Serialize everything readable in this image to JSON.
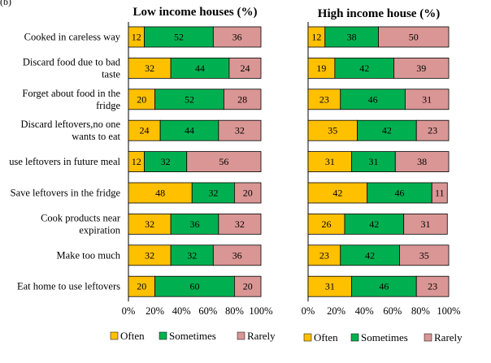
{
  "figure_label": "(b)",
  "chart_data": [
    {
      "type": "bar",
      "orientation": "horizontal",
      "stacked": true,
      "title": "Low income houses (%)",
      "categories": [
        "Cooked in careless way",
        "Discard food due to bad taste",
        "Forget about food in the fridge",
        "Discard leftovers,no one wants to eat",
        "use leftovers in future meal",
        "Save leftovers in the fridge",
        "Cook products near expiration",
        "Make too much",
        "Eat home to use leftovers"
      ],
      "category_lines": [
        [
          "Cooked in careless way"
        ],
        [
          "Discard food due to bad",
          "taste"
        ],
        [
          "Forget about food in the",
          "fridge"
        ],
        [
          "Discard leftovers,no one",
          "wants to eat"
        ],
        [
          "use leftovers in future meal"
        ],
        [
          "Save leftovers in the fridge"
        ],
        [
          "Cook products near",
          "expiration"
        ],
        [
          "Make too much"
        ],
        [
          "Eat home to use leftovers"
        ]
      ],
      "series": [
        {
          "name": "Often",
          "color": "#FFC000",
          "values": [
            12,
            32,
            20,
            24,
            12,
            48,
            32,
            32,
            20
          ]
        },
        {
          "name": "Sometimes",
          "color": "#00B050",
          "values": [
            52,
            44,
            52,
            44,
            32,
            32,
            36,
            32,
            60
          ]
        },
        {
          "name": "Rarely",
          "color": "#D99694",
          "values": [
            36,
            24,
            28,
            32,
            56,
            20,
            32,
            36,
            20
          ]
        }
      ],
      "xlim": [
        0,
        100
      ],
      "xticks": [
        "0%",
        "20%",
        "40%",
        "60%",
        "80%",
        "100%"
      ],
      "legend": "bottom"
    },
    {
      "type": "bar",
      "orientation": "horizontal",
      "stacked": true,
      "title": "High income house (%)",
      "categories": [
        "Cooked in careless way",
        "Discard food due to bad taste",
        "Forget about food in the fridge",
        "Discard leftovers,no one wants to eat",
        "use leftovers in future meal",
        "Save leftovers in the fridge",
        "Cook products near expiration",
        "Make too much",
        "Eat home to use leftovers"
      ],
      "series": [
        {
          "name": "Often",
          "color": "#FFC000",
          "values": [
            12,
            19,
            23,
            35,
            31,
            42,
            26,
            23,
            31
          ]
        },
        {
          "name": "Sometimes",
          "color": "#00B050",
          "values": [
            38,
            42,
            46,
            42,
            31,
            46,
            42,
            42,
            46
          ]
        },
        {
          "name": "Rarely",
          "color": "#D99694",
          "values": [
            50,
            39,
            31,
            23,
            38,
            11,
            31,
            35,
            23
          ]
        }
      ],
      "xlim": [
        0,
        100
      ],
      "xticks": [
        "0%",
        "20%",
        "40%",
        "60%",
        "80%",
        "100%"
      ],
      "legend": "bottom"
    }
  ]
}
